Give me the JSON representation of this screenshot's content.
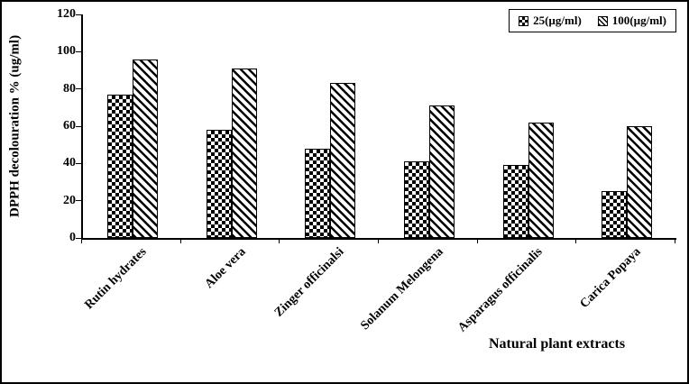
{
  "figure": {
    "background": "#ffffff",
    "border_color": "#000000"
  },
  "chart_data": {
    "type": "bar",
    "title": "",
    "xlabel": "Natural plant extracts",
    "ylabel": "DPPH decolouration % (ug/ml)",
    "categories": [
      "Rutin hydrates",
      "Aloe vera",
      "Zinger officinalsi",
      "Solanum Melongena",
      "Asparagus officinalis",
      "Carica Popaya"
    ],
    "series": [
      {
        "name": "25(µg/ml)",
        "pattern": "checker",
        "color": "#000000",
        "values": [
          77,
          58,
          48,
          41,
          39,
          25
        ]
      },
      {
        "name": "100(µg/ml)",
        "pattern": "stripes",
        "color": "#000000",
        "values": [
          96,
          91,
          83,
          71,
          62,
          60
        ]
      }
    ],
    "ylim": [
      0,
      120
    ],
    "yticks": [
      0,
      20,
      40,
      60,
      80,
      100,
      120
    ],
    "grid": false,
    "legend_position": "top-right"
  }
}
